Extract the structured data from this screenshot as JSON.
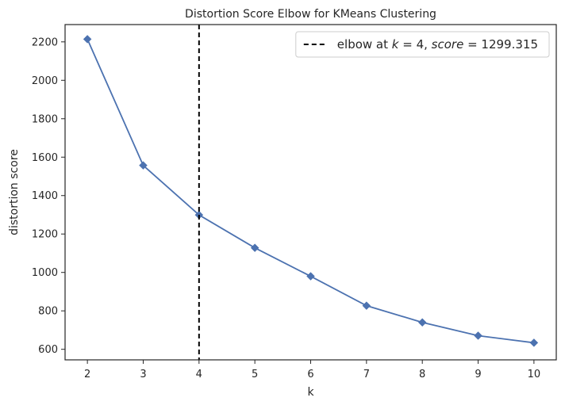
{
  "chart_data": {
    "type": "line",
    "title": "Distortion Score Elbow for KMeans Clustering",
    "xlabel": "k",
    "ylabel": "distortion score",
    "x": [
      2,
      3,
      4,
      5,
      6,
      7,
      8,
      9,
      10
    ],
    "series": [
      {
        "values": [
          2214,
          1557,
          1299.315,
          1128,
          980,
          827,
          740,
          671,
          634
        ],
        "color": "#4c72b0",
        "marker": "diamond"
      }
    ],
    "xlim": [
      1.6,
      10.4
    ],
    "ylim": [
      545,
      2290
    ],
    "xticks": [
      2,
      3,
      4,
      5,
      6,
      7,
      8,
      9,
      10
    ],
    "yticks": [
      600,
      800,
      1000,
      1200,
      1400,
      1600,
      1800,
      2000,
      2200
    ],
    "elbow": {
      "k": 4,
      "score": 1299.315,
      "line_style": "dashed",
      "color": "#000000"
    },
    "legend": {
      "placement": "top-right",
      "prefix": "elbow at ",
      "k_var": "k",
      "eq": " = ",
      "k_val": "4",
      "sep": ", ",
      "score_var": "score",
      "score_val": "1299.315"
    },
    "grid": false
  }
}
